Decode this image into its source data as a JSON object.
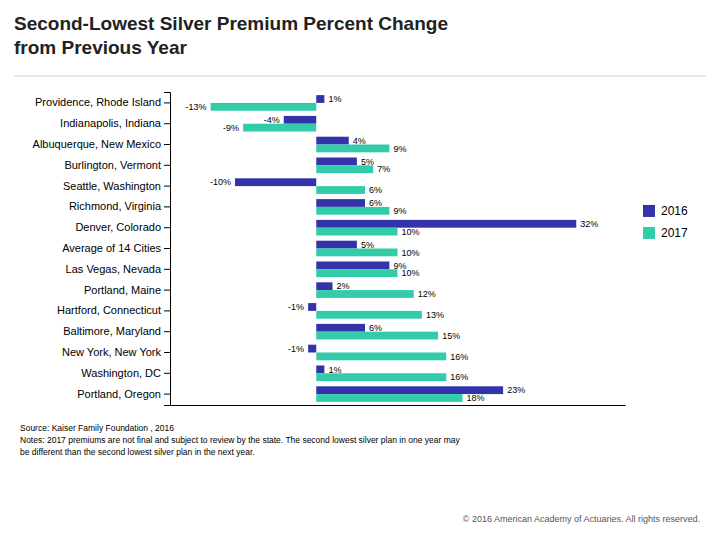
{
  "chart_data": {
    "type": "bar",
    "orientation": "horizontal",
    "title": "Second-Lowest Silver Premium Percent Change\nfrom Previous Year",
    "categories": [
      "Providence, Rhode Island",
      "Indianapolis, Indiana",
      "Albuquerque, New Mexico",
      "Burlington, Vermont",
      "Seattle, Washington",
      "Richmond, Virginia",
      "Denver, Colorado",
      "Average of 14 Cities",
      "Las Vegas, Nevada",
      "Portland, Maine",
      "Hartford, Connecticut",
      "Baltimore, Maryland",
      "New York, New York",
      "Washington, DC",
      "Portland, Oregon"
    ],
    "series": [
      {
        "name": "2016",
        "color": "#3333AA",
        "values": [
          1,
          -4,
          4,
          5,
          -10,
          6,
          32,
          5,
          9,
          2,
          -1,
          6,
          -1,
          1,
          23
        ],
        "value_labels": [
          "1%",
          "-4%",
          "4%",
          "5%",
          "-10%",
          "6%",
          "32%",
          "5%",
          "9%",
          "2%",
          "-1%",
          "6%",
          "-1%",
          "1%",
          "23%"
        ]
      },
      {
        "name": "2017",
        "color": "#33CCAA",
        "values": [
          -13,
          -9,
          9,
          7,
          6,
          9,
          10,
          10,
          10,
          12,
          13,
          15,
          16,
          16,
          18
        ],
        "value_labels": [
          "-13%",
          "-9%",
          "9%",
          "7%",
          "6%",
          "9%",
          "10%",
          "10%",
          "10%",
          "12%",
          "13%",
          "15%",
          "16%",
          "16%",
          "18%"
        ]
      }
    ],
    "xlim": [
      -18,
      38
    ],
    "tick_labels": "y",
    "data_labels": true,
    "legend": "right",
    "grid": false,
    "annotations": [
      "Source: Kaiser Family Foundation , 2016\nNotes: 2017 premiums are not final and subject to review by the state. The second lowest silver plan in one year may\nbe different than the second lowest silver plan in the next year.",
      "© 2016 American Academy of Actuaries. All rights reserved."
    ]
  }
}
